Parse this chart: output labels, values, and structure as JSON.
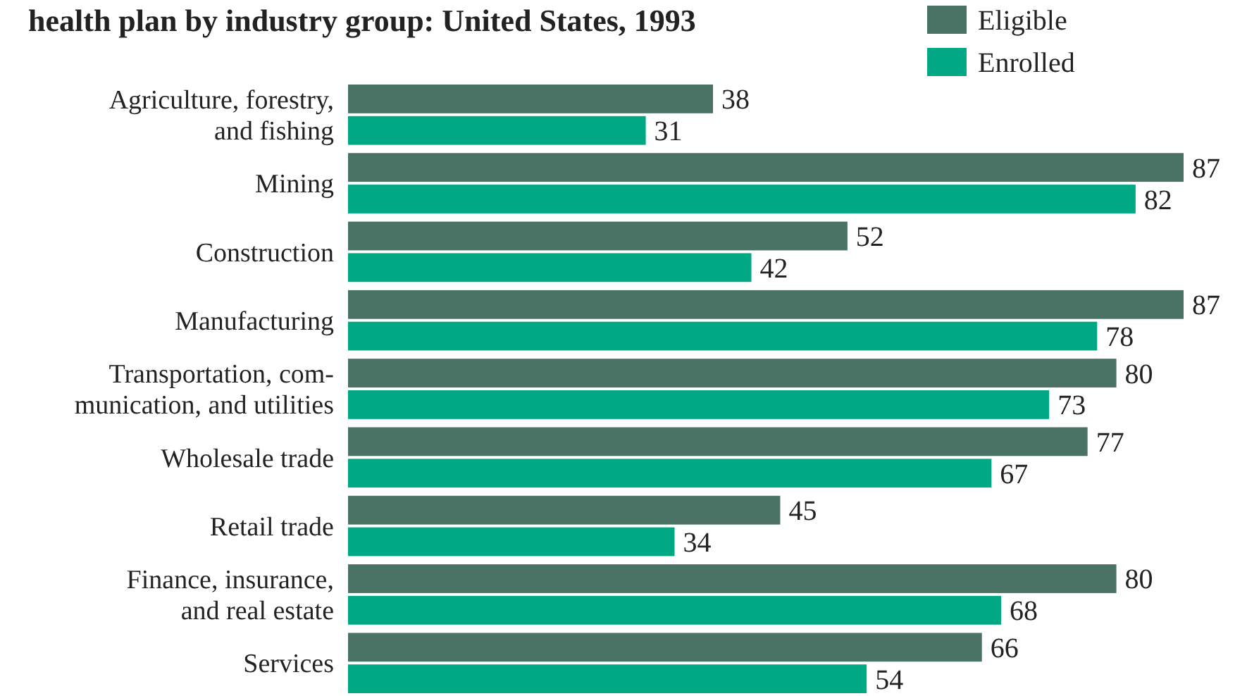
{
  "chart_data": {
    "type": "bar",
    "orientation": "horizontal",
    "title": "health plan by industry group: United States, 1993",
    "categories": [
      "Agriculture, forestry,\nand fishing",
      "Mining",
      "Construction",
      "Manufacturing",
      "Transportation, com-\nmunication, and utilities",
      "Wholesale trade",
      "Retail trade",
      "Finance, insurance,\nand real estate",
      "Services"
    ],
    "series": [
      {
        "name": "Eligible",
        "color": "#4a7265",
        "values": [
          38,
          87,
          52,
          87,
          80,
          77,
          45,
          80,
          66
        ]
      },
      {
        "name": "Enrolled",
        "color": "#00a884",
        "values": [
          31,
          82,
          42,
          78,
          73,
          67,
          34,
          68,
          54
        ]
      }
    ],
    "data_labels": true,
    "legend": "top right"
  }
}
